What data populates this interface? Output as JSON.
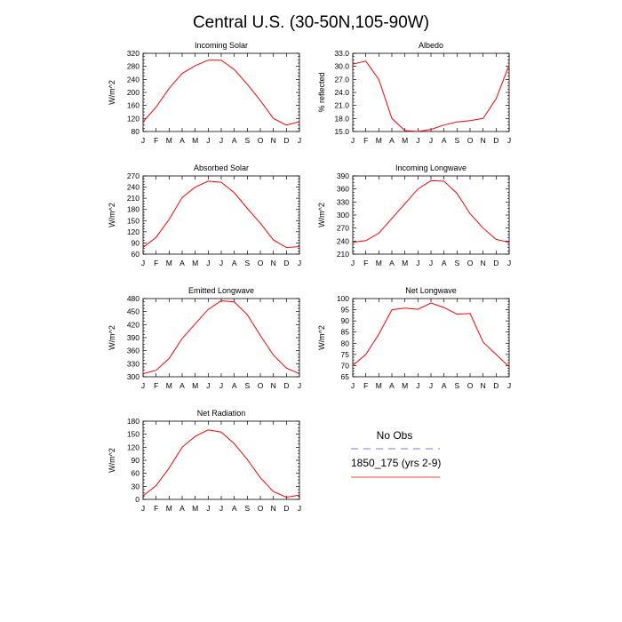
{
  "title": "Central U.S. (30-50N,105-90W)",
  "colors": {
    "model": "#ff0000",
    "obs": "#7777ee",
    "axis": "#000000"
  },
  "legend": [
    {
      "label": "No Obs",
      "style": "dashed",
      "color": "#7777ee"
    },
    {
      "label": "1850_175 (yrs 2-9)",
      "style": "solid",
      "color": "#ff0000"
    }
  ],
  "chart_data": [
    {
      "type": "line",
      "title": "Incoming Solar",
      "ylabel": "W/m^2",
      "categories": [
        "J",
        "F",
        "M",
        "A",
        "M",
        "J",
        "J",
        "A",
        "S",
        "O",
        "N",
        "D",
        "J"
      ],
      "ylim": [
        80,
        320
      ],
      "yticks": [
        "80",
        "120",
        "160",
        "200",
        "240",
        "280",
        "320"
      ],
      "series": [
        {
          "name": "1850_175 (yrs 2-9)",
          "values": [
            110,
            155,
            212,
            258,
            282,
            299,
            299,
            270,
            225,
            175,
            120,
            100,
            110
          ]
        }
      ]
    },
    {
      "type": "line",
      "title": "Albedo",
      "ylabel": "% reflected",
      "categories": [
        "J",
        "F",
        "M",
        "A",
        "M",
        "J",
        "J",
        "A",
        "S",
        "O",
        "N",
        "D",
        "J"
      ],
      "ylim": [
        15,
        33
      ],
      "yticks": [
        "15.0",
        "18.0",
        "21.0",
        "24.0",
        "27.0",
        "30.0",
        "33.0"
      ],
      "series": [
        {
          "name": "1850_175 (yrs 2-9)",
          "values": [
            30.5,
            31.2,
            27.0,
            18.0,
            15.2,
            15.0,
            15.5,
            16.5,
            17.2,
            17.5,
            18.0,
            22.5,
            30.3
          ]
        }
      ]
    },
    {
      "type": "line",
      "title": "Absorbed Solar",
      "ylabel": "W/m^2",
      "categories": [
        "J",
        "F",
        "M",
        "A",
        "M",
        "J",
        "J",
        "A",
        "S",
        "O",
        "N",
        "D",
        "J"
      ],
      "ylim": [
        60,
        270
      ],
      "yticks": [
        "60",
        "90",
        "120",
        "150",
        "180",
        "210",
        "240",
        "270"
      ],
      "series": [
        {
          "name": "1850_175 (yrs 2-9)",
          "values": [
            78,
            105,
            153,
            212,
            240,
            256,
            253,
            225,
            183,
            143,
            98,
            78,
            80
          ]
        }
      ]
    },
    {
      "type": "line",
      "title": "Incoming Longwave",
      "ylabel": "W/m^2",
      "categories": [
        "J",
        "F",
        "M",
        "A",
        "M",
        "J",
        "J",
        "A",
        "S",
        "O",
        "N",
        "D",
        "J"
      ],
      "ylim": [
        210,
        390
      ],
      "yticks": [
        "210",
        "240",
        "270",
        "300",
        "330",
        "360",
        "390"
      ],
      "series": [
        {
          "name": "1850_175 (yrs 2-9)",
          "values": [
            237,
            241,
            258,
            292,
            326,
            360,
            379,
            378,
            350,
            303,
            270,
            244,
            237
          ]
        }
      ]
    },
    {
      "type": "line",
      "title": "Emitted Longwave",
      "ylabel": "W/m^2",
      "categories": [
        "J",
        "F",
        "M",
        "A",
        "M",
        "J",
        "J",
        "A",
        "S",
        "O",
        "N",
        "D",
        "J"
      ],
      "ylim": [
        300,
        480
      ],
      "yticks": [
        "300",
        "330",
        "360",
        "390",
        "420",
        "450",
        "480"
      ],
      "series": [
        {
          "name": "1850_175 (yrs 2-9)",
          "values": [
            307,
            315,
            342,
            388,
            422,
            455,
            475,
            472,
            443,
            395,
            350,
            320,
            307
          ]
        }
      ]
    },
    {
      "type": "line",
      "title": "Net Longwave",
      "ylabel": "W/m^2",
      "categories": [
        "J",
        "F",
        "M",
        "A",
        "M",
        "J",
        "J",
        "A",
        "S",
        "O",
        "N",
        "D",
        "J"
      ],
      "ylim": [
        65,
        100
      ],
      "yticks": [
        "65",
        "70",
        "75",
        "80",
        "85",
        "90",
        "95",
        "100"
      ],
      "series": [
        {
          "name": "1850_175 (yrs 2-9)",
          "values": [
            70,
            75,
            84,
            95,
            95.7,
            95.2,
            98,
            96,
            93,
            93.3,
            80.5,
            75,
            69.5
          ]
        }
      ]
    },
    {
      "type": "line",
      "title": "Net Radiation",
      "ylabel": "W/m^2",
      "categories": [
        "J",
        "F",
        "M",
        "A",
        "M",
        "J",
        "J",
        "A",
        "S",
        "O",
        "N",
        "D",
        "J"
      ],
      "ylim": [
        0,
        180
      ],
      "yticks": [
        "0",
        "30",
        "60",
        "90",
        "120",
        "150",
        "180"
      ],
      "series": [
        {
          "name": "1850_175 (yrs 2-9)",
          "values": [
            8,
            32,
            72,
            120,
            145,
            160,
            155,
            128,
            92,
            50,
            18,
            5,
            10
          ]
        }
      ]
    }
  ]
}
